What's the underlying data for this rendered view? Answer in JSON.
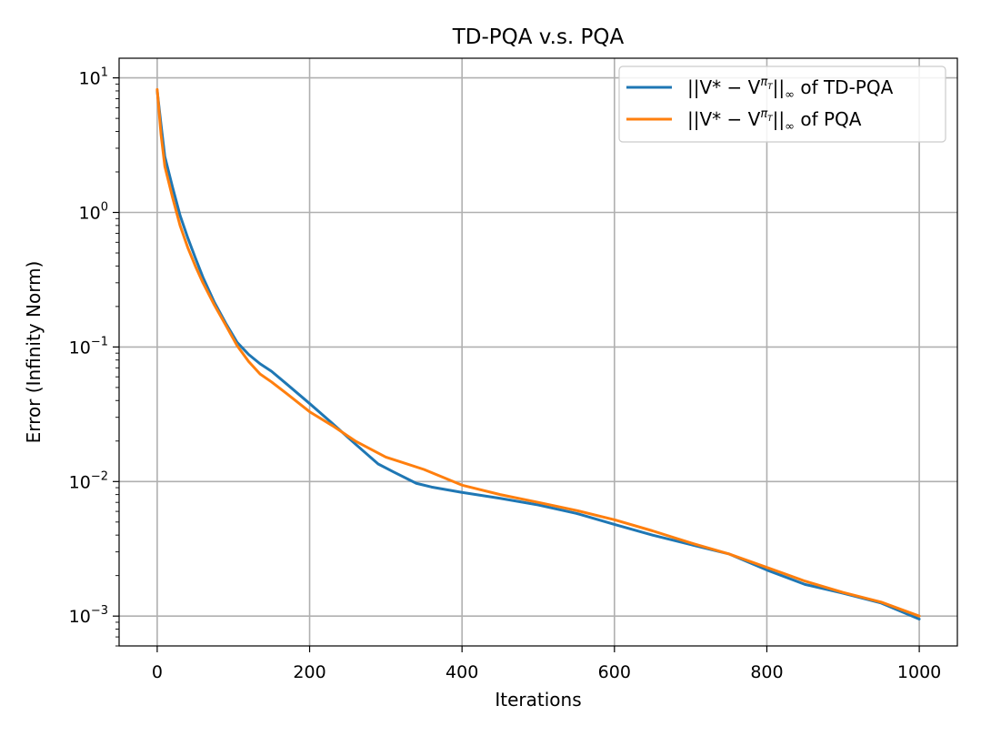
{
  "chart_data": {
    "type": "line",
    "title": "TD-PQA v.s. PQA",
    "xlabel": "Iterations",
    "ylabel": "Error (Infinity Norm)",
    "xscale": "linear",
    "yscale": "log",
    "xlim": [
      -50,
      1050
    ],
    "ylim": [
      0.0006,
      14
    ],
    "x_ticks": [
      0,
      200,
      400,
      600,
      800,
      1000
    ],
    "x_tick_labels": [
      "0",
      "200",
      "400",
      "600",
      "800",
      "1000"
    ],
    "y_ticks": [
      10,
      1,
      0.1,
      0.01,
      0.001
    ],
    "y_tick_labels": [
      {
        "base": "10",
        "exp": "1"
      },
      {
        "base": "10",
        "exp": "0"
      },
      {
        "base": "10",
        "exp": "−1"
      },
      {
        "base": "10",
        "exp": "−2"
      },
      {
        "base": "10",
        "exp": "−3"
      }
    ],
    "grid": true,
    "legend_position": "top-right",
    "series": [
      {
        "name": "||V* − V^{π_T}||∞ of TD-PQA",
        "legend": {
          "pre": "||V* − V",
          "sup": "π",
          "supsub": "T",
          "mid": "||",
          "sub": "∞",
          "post": " of TD-PQA"
        },
        "color": "#1f77b4",
        "x": [
          0,
          5,
          10,
          20,
          30,
          40,
          50,
          60,
          75,
          90,
          105,
          120,
          135,
          150,
          170,
          200,
          230,
          260,
          290,
          310,
          340,
          360,
          400,
          450,
          500,
          550,
          600,
          650,
          700,
          750,
          800,
          850,
          900,
          950,
          1000
        ],
        "y": [
          8.0,
          4.5,
          2.6,
          1.55,
          0.95,
          0.65,
          0.46,
          0.33,
          0.215,
          0.15,
          0.108,
          0.088,
          0.075,
          0.066,
          0.053,
          0.038,
          0.027,
          0.019,
          0.0135,
          0.0118,
          0.0097,
          0.0091,
          0.0083,
          0.0075,
          0.0067,
          0.0058,
          0.0048,
          0.004,
          0.0034,
          0.0029,
          0.0022,
          0.00172,
          0.00148,
          0.00125,
          0.00095
        ]
      },
      {
        "name": "||V* − V^{π_T}||∞ of PQA",
        "legend": {
          "pre": "||V* − V",
          "sup": "π",
          "supsub": "T",
          "mid": "||",
          "sub": "∞",
          "post": " of PQA"
        },
        "color": "#ff7f0e",
        "x": [
          0,
          5,
          10,
          20,
          30,
          40,
          50,
          60,
          75,
          90,
          105,
          120,
          135,
          150,
          170,
          200,
          230,
          260,
          300,
          350,
          400,
          450,
          500,
          550,
          600,
          650,
          700,
          750,
          800,
          850,
          900,
          950,
          1000
        ],
        "y": [
          8.2,
          3.8,
          2.2,
          1.3,
          0.8,
          0.55,
          0.4,
          0.3,
          0.205,
          0.145,
          0.102,
          0.078,
          0.063,
          0.055,
          0.045,
          0.033,
          0.026,
          0.02,
          0.0152,
          0.0123,
          0.0094,
          0.008,
          0.007,
          0.0061,
          0.0052,
          0.0043,
          0.0035,
          0.0029,
          0.0023,
          0.00182,
          0.0015,
          0.00127,
          0.001
        ]
      }
    ]
  }
}
